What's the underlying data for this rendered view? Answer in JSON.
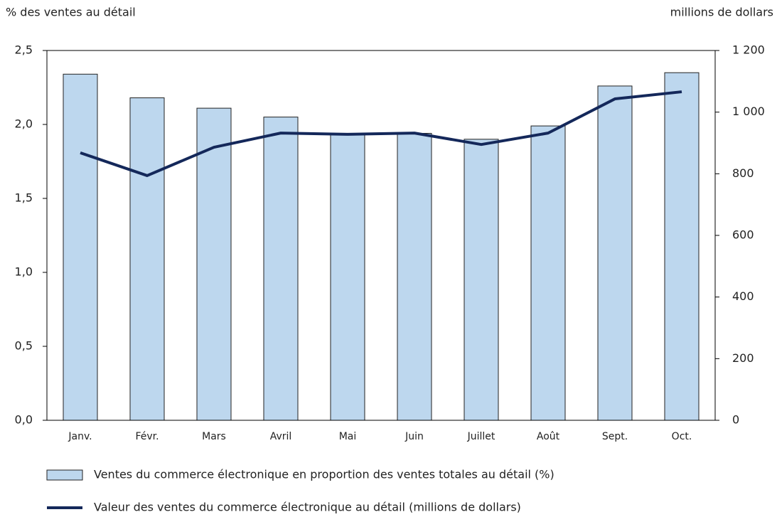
{
  "chart_data": {
    "type": "bar",
    "y_label": "% des ventes au détail",
    "y2_label": "millions de dollars",
    "categories": [
      "Janv.",
      "Févr.",
      "Mars",
      "Avril",
      "Mai",
      "Juin",
      "Juillet",
      "Août",
      "Sept.",
      "Oct."
    ],
    "series": [
      {
        "name": "Ventes du commerce électronique en proportion des ventes totales au détail (%)",
        "type": "bar",
        "color": "#bdd7ee",
        "values": [
          2.34,
          2.18,
          2.11,
          2.05,
          1.94,
          1.94,
          1.9,
          1.99,
          2.26,
          2.35
        ]
      },
      {
        "name": "Valeur des ventes du commerce électronique au détail (millions de dollars)",
        "type": "line",
        "axis": "y2",
        "color": "#14285a",
        "values": [
          868,
          794,
          886,
          932,
          928,
          932,
          895,
          932,
          1043,
          1066
        ]
      }
    ],
    "ylim": [
      0,
      2.5
    ],
    "yticks": [
      {
        "value": 0,
        "label": "0,0"
      },
      {
        "value": 0.5,
        "label": "0,5"
      },
      {
        "value": 1,
        "label": "1,0"
      },
      {
        "value": 1.5,
        "label": "1,5"
      },
      {
        "value": 2,
        "label": "2,0"
      },
      {
        "value": 2.5,
        "label": "2,5"
      }
    ],
    "y2lim": [
      0,
      1200
    ],
    "y2ticks": [
      0,
      200,
      400,
      600,
      800,
      {
        "value": 1000,
        "label": "1 000"
      },
      {
        "value": 1200,
        "label": "1 200"
      }
    ],
    "grid": false
  }
}
